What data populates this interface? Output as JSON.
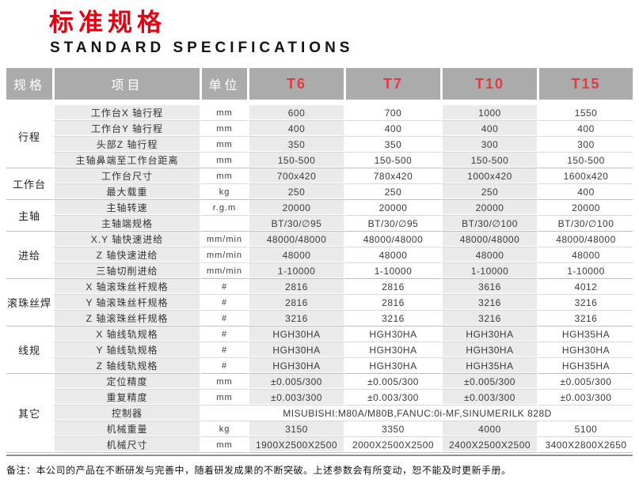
{
  "page": {
    "title_cn": "标准规格",
    "title_en": "STANDARD SPECIFICATIONS"
  },
  "colors": {
    "title_red": "#e60012",
    "model_red": "#e23b41",
    "header_gray": "#ababab",
    "stripe_gray": "#eaeaea"
  },
  "table": {
    "columns": [
      "规格",
      "项目",
      "单位",
      "T6",
      "T7",
      "T10",
      "T15"
    ],
    "groups": [
      {
        "label": "行程",
        "rows": [
          {
            "item": "工作台X 轴行程",
            "unit": "mm",
            "values": [
              "600",
              "700",
              "1000",
              "1550"
            ]
          },
          {
            "item": "工作台Y 轴行程",
            "unit": "mm",
            "values": [
              "400",
              "400",
              "400",
              "400"
            ]
          },
          {
            "item": "头部Z 轴行程",
            "unit": "mm",
            "values": [
              "350",
              "350",
              "300",
              "300"
            ]
          },
          {
            "item": "主轴鼻端至工作台距离",
            "unit": "mm",
            "values": [
              "150-500",
              "150-500",
              "150-500",
              "150-500"
            ]
          }
        ]
      },
      {
        "label": "工作台",
        "rows": [
          {
            "item": "工作台尺寸",
            "unit": "mm",
            "values": [
              "700x420",
              "780x420",
              "1000x420",
              "1600x420"
            ]
          },
          {
            "item": "最大载重",
            "unit": "kg",
            "values": [
              "250",
              "250",
              "250",
              "400"
            ]
          }
        ]
      },
      {
        "label": "主轴",
        "rows": [
          {
            "item": "主轴转速",
            "unit": "r.g.m",
            "values": [
              "20000",
              "20000",
              "20000",
              "20000"
            ]
          },
          {
            "item": "主轴端规格",
            "unit": "",
            "values": [
              "BT/30/∅95",
              "BT/30/∅95",
              "BT/30/∅100",
              "BT/30/∅100"
            ]
          }
        ]
      },
      {
        "label": "进给",
        "rows": [
          {
            "item": "X.Y 轴快速进给",
            "unit": "mm/min",
            "values": [
              "48000/48000",
              "48000/48000",
              "48000/48000",
              "48000/48000"
            ]
          },
          {
            "item": "Z 轴快速进给",
            "unit": "mm/min",
            "values": [
              "48000",
              "48000",
              "48000",
              "48000"
            ]
          },
          {
            "item": "三轴切削进给",
            "unit": "mm/min",
            "values": [
              "1-10000",
              "1-10000",
              "1-10000",
              "1-10000"
            ]
          }
        ]
      },
      {
        "label": "滚珠丝焊",
        "rows": [
          {
            "item": "X 轴滚珠丝杆规格",
            "unit": "#",
            "values": [
              "2816",
              "2816",
              "3616",
              "4012"
            ]
          },
          {
            "item": "Y 轴滚珠丝杆规格",
            "unit": "#",
            "values": [
              "2816",
              "2816",
              "3216",
              "3216"
            ]
          },
          {
            "item": "Z 轴滚珠丝杆规格",
            "unit": "#",
            "values": [
              "3216",
              "3216",
              "3216",
              "3216"
            ]
          }
        ]
      },
      {
        "label": "线规",
        "rows": [
          {
            "item": "X 轴线轨规格",
            "unit": "#",
            "values": [
              "HGH30HA",
              "HGH30HA",
              "HGH30HA",
              "HGH35HA"
            ]
          },
          {
            "item": "Y 轴线轨规格",
            "unit": "#",
            "values": [
              "HGH30HA",
              "HGH30HA",
              "HGH30HA",
              "HGH30HA"
            ]
          },
          {
            "item": "Z 轴线轨规格",
            "unit": "#",
            "values": [
              "HGH30HA",
              "HGH30HA",
              "HGH35HA",
              "HGH35HA"
            ]
          }
        ]
      },
      {
        "label": "其它",
        "rows": [
          {
            "item": "定位精度",
            "unit": "mm",
            "values": [
              "±0.005/300",
              "±0.005/300",
              "±0.005/300",
              "±0.005/300"
            ]
          },
          {
            "item": "重复精度",
            "unit": "mm",
            "values": [
              "±0.003/300",
              "±0.003/300",
              "±0.003/300",
              "±0.003/300"
            ]
          },
          {
            "item": "控制器",
            "span": "MISUBISHI:M80A/M80B,FANUC:0i-MF,SINUMERILK 828D"
          },
          {
            "item": "机械重量",
            "unit": "kg",
            "values": [
              "3150",
              "3350",
              "4000",
              "5100"
            ]
          },
          {
            "item": "机械尺寸",
            "unit": "mm",
            "values": [
              "1900X2500X2500",
              "2000X2500X2500",
              "2400X2500X2500",
              "3400X2800X2650"
            ]
          }
        ]
      }
    ]
  },
  "footer": {
    "note": "备注：本公司的产品在不断研发与完善中，随着研发成果的不断突破。上述参数会有所变动，恕不能及时更新手册。"
  }
}
